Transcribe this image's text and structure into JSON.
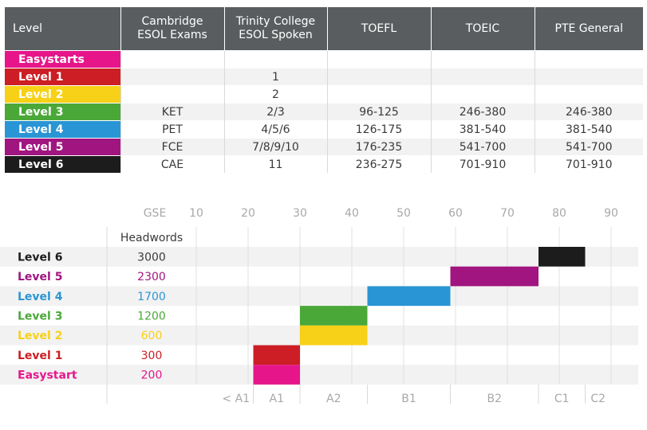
{
  "table": {
    "headers": [
      "Level",
      "Cambridge ESOL Exams",
      "Trinity College ESOL Spoken",
      "TOEFL",
      "TOEIC",
      "PTE General"
    ],
    "rows": [
      {
        "level": "Easystarts",
        "color": "#e6168a",
        "cells": [
          "",
          "",
          "",
          "",
          ""
        ]
      },
      {
        "level": "Level 1",
        "color": "#cc1e24",
        "cells": [
          "",
          "1",
          "",
          "",
          ""
        ]
      },
      {
        "level": "Level 2",
        "color": "#f7d117",
        "cells": [
          "",
          "2",
          "",
          "",
          ""
        ]
      },
      {
        "level": "Level 3",
        "color": "#4aa838",
        "cells": [
          "KET",
          "2/3",
          "96-125",
          "246-380",
          "246-380"
        ]
      },
      {
        "level": "Level 4",
        "color": "#2a95d4",
        "cells": [
          "PET",
          "4/5/6",
          "126-175",
          "381-540",
          "381-540"
        ]
      },
      {
        "level": "Level 5",
        "color": "#a0157f",
        "cells": [
          "FCE",
          "7/8/9/10",
          "176-235",
          "541-700",
          "541-700"
        ]
      },
      {
        "level": "Level 6",
        "color": "#1c1c1c",
        "cells": [
          "CAE",
          "11",
          "236-275",
          "701-910",
          "701-910"
        ]
      }
    ]
  },
  "chart_data": {
    "type": "bar",
    "orientation": "horizontal-range",
    "x_axis_label": "GSE",
    "x_ticks": [
      10,
      20,
      30,
      40,
      50,
      60,
      70,
      80,
      90
    ],
    "xlim": [
      10,
      90
    ],
    "headwords_label": "Headwords",
    "series": [
      {
        "name": "Level 6",
        "headwords": "3000",
        "color": "#1c1c1c",
        "start": 76,
        "end": 85
      },
      {
        "name": "Level 5",
        "headwords": "2300",
        "color": "#a0157f",
        "start": 59,
        "end": 76
      },
      {
        "name": "Level 4",
        "headwords": "1700",
        "color": "#2a95d4",
        "start": 43,
        "end": 59
      },
      {
        "name": "Level 3",
        "headwords": "1200",
        "color": "#4aa838",
        "start": 30,
        "end": 43
      },
      {
        "name": "Level 2",
        "headwords": "600",
        "color": "#f7d117",
        "start": 30,
        "end": 43
      },
      {
        "name": "Level 1",
        "headwords": "300",
        "color": "#cc1e24",
        "start": 21,
        "end": 30
      },
      {
        "name": "Easystart",
        "headwords": "200",
        "color": "#e6168a",
        "start": 21,
        "end": 30
      }
    ],
    "cefr_bands": [
      {
        "label": "< A1",
        "start": 10,
        "end": 21
      },
      {
        "label": "A1",
        "start": 21,
        "end": 30
      },
      {
        "label": "A2",
        "start": 30,
        "end": 43
      },
      {
        "label": "B1",
        "start": 43,
        "end": 59
      },
      {
        "label": "B2",
        "start": 59,
        "end": 76
      },
      {
        "label": "C1",
        "start": 76,
        "end": 85
      },
      {
        "label": "C2",
        "start": 85,
        "end": 90
      }
    ]
  }
}
